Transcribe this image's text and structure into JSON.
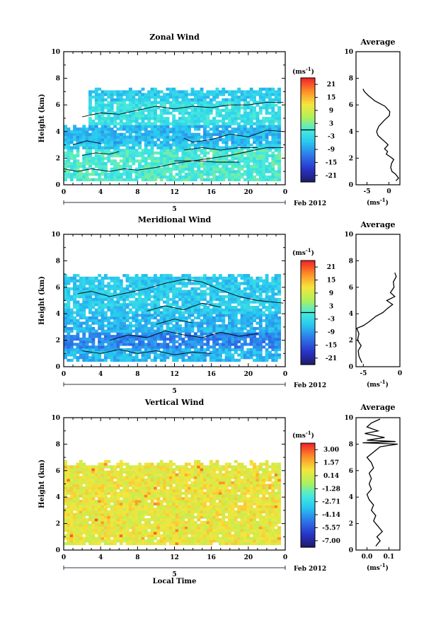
{
  "chart_data": [
    {
      "type": "heatmap",
      "title": "Zonal Wind",
      "xlabel": "",
      "ylabel": "Height (km)",
      "xlim": [
        0,
        24
      ],
      "ylim": [
        0,
        10
      ],
      "x_ticks": [
        "0",
        "4",
        "8",
        "12",
        "16",
        "20",
        "0"
      ],
      "y_ticks": [
        "0",
        "2",
        "4",
        "6",
        "8",
        "10"
      ],
      "date_label": "5",
      "date_suffix": "Feb 2012",
      "colorbar": {
        "unit_label": "(ms",
        "unit_exp": "-1",
        "unit_close": ")",
        "tick_values": [
          "21",
          "15",
          "9",
          "3",
          "-3",
          "-9",
          "-15",
          "-21"
        ],
        "range": [
          -24,
          24
        ]
      },
      "profile": {
        "title": "Average",
        "xlabel": "(ms",
        "xlabel_exp": "-1",
        "xlabel_close": ")",
        "x_ticks": [
          "-5",
          "0"
        ],
        "x_tick_values": [
          -5,
          0
        ],
        "xlim": [
          -7.5,
          2.5
        ],
        "ylim": [
          0,
          10
        ],
        "y_ticks": [
          "0",
          "2",
          "4",
          "6",
          "8",
          "10"
        ],
        "points": [
          [
            1.6,
            0.3
          ],
          [
            2.2,
            0.5
          ],
          [
            1.5,
            0.8
          ],
          [
            0.7,
            1.0
          ],
          [
            0.4,
            1.3
          ],
          [
            0.6,
            1.6
          ],
          [
            1.1,
            1.9
          ],
          [
            0.3,
            2.1
          ],
          [
            -0.6,
            2.3
          ],
          [
            -0.3,
            2.5
          ],
          [
            -1.0,
            2.7
          ],
          [
            -0.2,
            3.0
          ],
          [
            -0.8,
            3.2
          ],
          [
            -1.5,
            3.4
          ],
          [
            -2.5,
            3.7
          ],
          [
            -2.8,
            4.0
          ],
          [
            -2.3,
            4.4
          ],
          [
            -1.2,
            4.8
          ],
          [
            0.1,
            5.2
          ],
          [
            0.2,
            5.5
          ],
          [
            -0.9,
            5.9
          ],
          [
            -3.2,
            6.3
          ],
          [
            -4.7,
            6.7
          ],
          [
            -5.6,
            7.0
          ],
          [
            -5.9,
            7.2
          ]
        ]
      },
      "contour": {
        "label": "0",
        "segments": [
          [
            [
              0,
              1.2
            ],
            [
              1.5,
              1.0
            ],
            [
              3,
              1.2
            ],
            [
              5,
              1.0
            ],
            [
              6.5,
              1.2
            ],
            [
              8,
              1.1
            ],
            [
              10,
              1.3
            ],
            [
              12,
              1.6
            ],
            [
              14,
              1.8
            ],
            [
              16,
              2.0
            ],
            [
              18,
              2.2
            ],
            [
              20,
              2.5
            ],
            [
              22,
              2.8
            ],
            [
              23.8,
              2.8
            ]
          ],
          [
            [
              2,
              2.2
            ],
            [
              3.5,
              2.4
            ],
            [
              5,
              2.3
            ],
            [
              6,
              2.5
            ]
          ],
          [
            [
              12,
              1.8
            ],
            [
              14.5,
              1.8
            ],
            [
              16.5,
              1.7
            ],
            [
              19,
              1.7
            ]
          ],
          [
            [
              13,
              3.5
            ],
            [
              14,
              3.2
            ],
            [
              16,
              3.4
            ],
            [
              18,
              3.8
            ],
            [
              20,
              3.6
            ],
            [
              22,
              4.1
            ],
            [
              23.8,
              4.0
            ]
          ],
          [
            [
              13,
              2.6
            ],
            [
              15,
              2.8
            ],
            [
              17,
              2.6
            ],
            [
              19,
              2.8
            ],
            [
              21,
              2.8
            ]
          ],
          [
            [
              2,
              5.1
            ],
            [
              4,
              5.4
            ],
            [
              6,
              5.3
            ],
            [
              8,
              5.6
            ],
            [
              10,
              5.9
            ],
            [
              12,
              5.7
            ],
            [
              14,
              5.9
            ],
            [
              16,
              5.8
            ],
            [
              18,
              6.0
            ],
            [
              20,
              6.0
            ],
            [
              22,
              6.2
            ],
            [
              23.8,
              6.2
            ]
          ],
          [
            [
              1,
              3.0
            ],
            [
              2.5,
              3.3
            ],
            [
              4,
              3.1
            ]
          ]
        ]
      },
      "field": {
        "height_range": [
          0.3,
          7.3
        ],
        "layers": [
          {
            "z": [
              0.3,
              2.6
            ],
            "value": 0
          },
          {
            "z": [
              2.6,
              3.1
            ],
            "value": -5
          },
          {
            "z": [
              3.1,
              4.4
            ],
            "value": -7
          },
          {
            "z": [
              4.4,
              6.2
            ],
            "value": -2
          },
          {
            "z": [
              6.2,
              7.3
            ],
            "value": -5
          }
        ]
      }
    },
    {
      "type": "heatmap",
      "title": "Meridional Wind",
      "xlabel": "",
      "ylabel": "Height (km)",
      "xlim": [
        0,
        24
      ],
      "ylim": [
        0,
        10
      ],
      "x_ticks": [
        "0",
        "4",
        "8",
        "12",
        "16",
        "20",
        "0"
      ],
      "y_ticks": [
        "0",
        "2",
        "4",
        "6",
        "8",
        "10"
      ],
      "date_label": "5",
      "date_suffix": "Feb 2012",
      "colorbar": {
        "unit_label": "(ms",
        "unit_exp": "-1",
        "unit_close": ")",
        "tick_values": [
          "21",
          "15",
          "9",
          "3",
          "-3",
          "-9",
          "-15",
          "-21"
        ],
        "range": [
          -24,
          24
        ]
      },
      "profile": {
        "title": "Average",
        "xlabel": "(ms",
        "xlabel_exp": "-1",
        "xlabel_close": ")",
        "x_ticks": [
          "-5",
          "0"
        ],
        "x_tick_values": [
          -5,
          0
        ],
        "xlim": [
          -6,
          0
        ],
        "ylim": [
          0,
          10
        ],
        "y_ticks": [
          "0",
          "2",
          "4",
          "6",
          "8",
          "10"
        ],
        "points": [
          [
            -5.2,
            0.3
          ],
          [
            -5.6,
            0.8
          ],
          [
            -5.7,
            1.2
          ],
          [
            -5.3,
            1.6
          ],
          [
            -5.8,
            2.0
          ],
          [
            -5.6,
            2.5
          ],
          [
            -5.9,
            2.9
          ],
          [
            -5.0,
            3.1
          ],
          [
            -4.2,
            3.4
          ],
          [
            -3.3,
            3.8
          ],
          [
            -2.3,
            4.1
          ],
          [
            -1.7,
            4.4
          ],
          [
            -1.0,
            4.7
          ],
          [
            -1.8,
            5.0
          ],
          [
            -0.7,
            5.3
          ],
          [
            -1.3,
            5.6
          ],
          [
            -0.8,
            6.0
          ],
          [
            -0.9,
            6.4
          ],
          [
            -0.5,
            6.8
          ],
          [
            -0.7,
            7.1
          ]
        ]
      },
      "contour": {
        "label": "0",
        "segments": [
          [
            [
              1.5,
              5.5
            ],
            [
              3,
              5.7
            ],
            [
              5,
              5.3
            ],
            [
              7,
              5.6
            ],
            [
              9,
              5.9
            ],
            [
              11,
              6.3
            ],
            [
              13,
              6.6
            ],
            [
              15,
              6.4
            ],
            [
              17,
              5.8
            ],
            [
              19,
              5.3
            ],
            [
              21,
              5.0
            ],
            [
              23.8,
              4.8
            ]
          ],
          [
            [
              9,
              4.2
            ],
            [
              11,
              4.6
            ],
            [
              13,
              4.3
            ],
            [
              15,
              4.8
            ],
            [
              17,
              4.5
            ]
          ],
          [
            [
              5,
              2.0
            ],
            [
              7,
              2.4
            ],
            [
              9,
              2.2
            ],
            [
              11,
              2.7
            ],
            [
              13,
              2.4
            ],
            [
              15,
              2.2
            ],
            [
              17,
              2.6
            ],
            [
              19,
              2.3
            ],
            [
              21,
              2.5
            ]
          ],
          [
            [
              2,
              1.2
            ],
            [
              4,
              1.0
            ],
            [
              6,
              1.3
            ],
            [
              8,
              1.0
            ],
            [
              10,
              1.2
            ],
            [
              12,
              0.9
            ],
            [
              14,
              1.1
            ],
            [
              16,
              1.0
            ]
          ],
          [
            [
              10,
              3.2
            ],
            [
              12,
              3.6
            ],
            [
              14,
              3.3
            ]
          ]
        ]
      },
      "field": {
        "height_range": [
          0.4,
          7.0
        ],
        "layers": [
          {
            "z": [
              0.4,
              1.3
            ],
            "value": -7
          },
          {
            "z": [
              1.3,
              2.6
            ],
            "value": -11
          },
          {
            "z": [
              2.6,
              4.0
            ],
            "value": -7
          },
          {
            "z": [
              4.0,
              7.0
            ],
            "value": -5
          }
        ]
      }
    },
    {
      "type": "heatmap",
      "title": "Vertical Wind",
      "xlabel": "Local Time",
      "ylabel": "Height (km)",
      "xlim": [
        0,
        24
      ],
      "ylim": [
        0,
        10
      ],
      "x_ticks": [
        "0",
        "4",
        "8",
        "12",
        "16",
        "20",
        "0"
      ],
      "y_ticks": [
        "0",
        "2",
        "4",
        "6",
        "8",
        "10"
      ],
      "date_label": "5",
      "date_suffix": "Feb 2012",
      "colorbar": {
        "unit_label": "(ms",
        "unit_exp": "-1",
        "unit_close": ")",
        "tick_values": [
          "3.00",
          "1.57",
          "0.14",
          "-1.28",
          "-2.71",
          "-4.14",
          "-5.57",
          "-7.00"
        ],
        "range": [
          -8.43,
          4.43
        ]
      },
      "profile": {
        "title": "Average",
        "xlabel": "(ms",
        "xlabel_exp": "-1",
        "xlabel_close": ")",
        "x_ticks": [
          "0.0",
          "0.1"
        ],
        "x_tick_values": [
          0.0,
          0.1
        ],
        "xlim": [
          -0.05,
          0.15
        ],
        "ylim": [
          0,
          10
        ],
        "y_ticks": [
          "0",
          "2",
          "4",
          "6",
          "8",
          "10"
        ],
        "points": [
          [
            0.04,
            0.3
          ],
          [
            0.06,
            0.7
          ],
          [
            0.045,
            1.0
          ],
          [
            0.07,
            1.4
          ],
          [
            0.05,
            1.8
          ],
          [
            0.03,
            2.2
          ],
          [
            0.04,
            2.6
          ],
          [
            0.02,
            3.0
          ],
          [
            0.03,
            3.4
          ],
          [
            0.01,
            3.8
          ],
          [
            0.0,
            4.2
          ],
          [
            0.02,
            4.6
          ],
          [
            0.01,
            5.0
          ],
          [
            0.02,
            5.4
          ],
          [
            0.01,
            5.8
          ],
          [
            0.03,
            6.2
          ],
          [
            0.02,
            6.6
          ],
          [
            0.0,
            7.0
          ],
          [
            0.03,
            7.4
          ],
          [
            0.06,
            7.8
          ],
          [
            0.14,
            8.0
          ],
          [
            -0.02,
            8.1
          ],
          [
            0.13,
            8.2
          ],
          [
            0.0,
            8.3
          ],
          [
            0.08,
            8.5
          ],
          [
            -0.01,
            8.8
          ],
          [
            0.05,
            9.0
          ],
          [
            0.0,
            9.3
          ],
          [
            0.02,
            9.6
          ],
          [
            0.06,
            9.9
          ]
        ]
      },
      "contour": {
        "label": "",
        "segments": []
      },
      "field": {
        "height_range": [
          0.4,
          6.8
        ],
        "layers": [
          {
            "z": [
              0.4,
              6.8
            ],
            "value": 0.9
          }
        ]
      }
    }
  ]
}
